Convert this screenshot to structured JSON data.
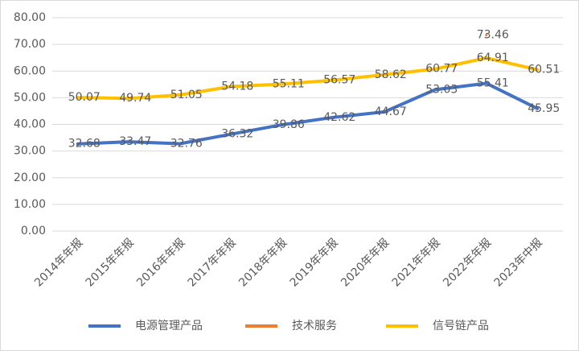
{
  "chart_data": {
    "type": "line",
    "categories": [
      "2014年年报",
      "2015年年报",
      "2016年年报",
      "2017年年报",
      "2018年年报",
      "2019年年报",
      "2020年年报",
      "2021年年报",
      "2022年年报",
      "2023年中报"
    ],
    "series": [
      {
        "name": "电源管理产品",
        "color": "#4472c4",
        "values": [
          32.68,
          33.47,
          32.76,
          36.32,
          39.86,
          42.62,
          44.67,
          53.03,
          55.41,
          45.95
        ]
      },
      {
        "name": "技术服务",
        "color": "#ed7d31",
        "values": [
          null,
          null,
          null,
          null,
          null,
          null,
          null,
          null,
          73.46,
          null
        ]
      },
      {
        "name": "信号链产品",
        "color": "#ffc000",
        "values": [
          50.07,
          49.74,
          51.05,
          54.18,
          55.11,
          56.57,
          58.62,
          60.77,
          64.91,
          60.51
        ]
      }
    ],
    "ylim": [
      0,
      80
    ],
    "yticks": [
      {
        "value": 0,
        "label": "0.00"
      },
      {
        "value": 10,
        "label": "10.00"
      },
      {
        "value": 20,
        "label": "20.00"
      },
      {
        "value": 30,
        "label": "30.00"
      },
      {
        "value": 40,
        "label": "40.00"
      },
      {
        "value": 50,
        "label": "50.00"
      },
      {
        "value": 60,
        "label": "60.00"
      },
      {
        "value": 70,
        "label": "70.00"
      },
      {
        "value": 80,
        "label": "80.00"
      }
    ],
    "grid": true,
    "legend": "bottom"
  }
}
